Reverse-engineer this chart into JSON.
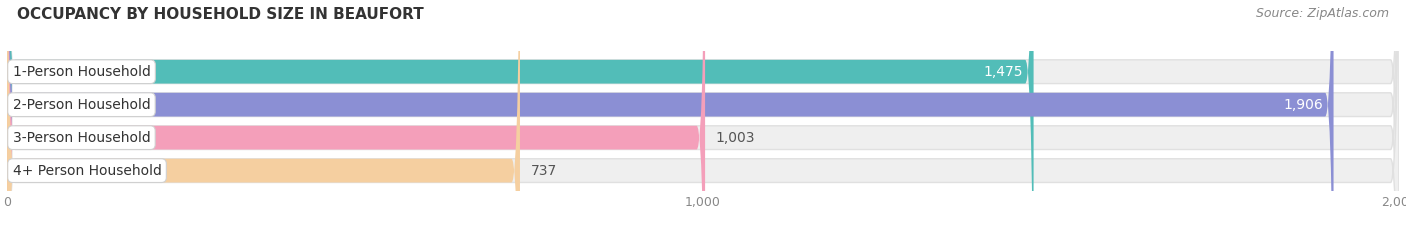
{
  "title": "OCCUPANCY BY HOUSEHOLD SIZE IN BEAUFORT",
  "source": "Source: ZipAtlas.com",
  "categories": [
    "1-Person Household",
    "2-Person Household",
    "3-Person Household",
    "4+ Person Household"
  ],
  "values": [
    1475,
    1906,
    1003,
    737
  ],
  "bar_colors": [
    "#52bdb8",
    "#8b8fd4",
    "#f49fba",
    "#f5cfa0"
  ],
  "bar_bg_color": "#efefef",
  "bar_bg_border_color": "#e0e0e0",
  "xlim": [
    0,
    2000
  ],
  "xticks": [
    0,
    1000,
    2000
  ],
  "value_inside": [
    true,
    true,
    false,
    false
  ],
  "title_fontsize": 11,
  "tick_fontsize": 9,
  "source_fontsize": 9,
  "cat_fontsize": 10,
  "val_fontsize": 10,
  "background_color": "#ffffff"
}
